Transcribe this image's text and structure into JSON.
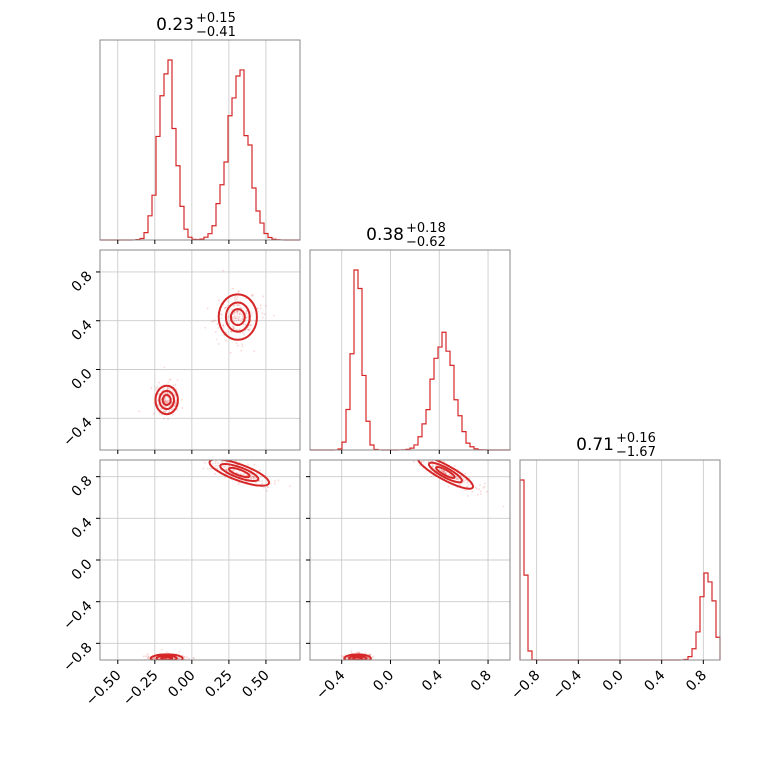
{
  "colors": {
    "series": "#d62728",
    "fill_light": "#f4b4b5",
    "fill_mid": "#ea7f84",
    "grid": "#cccccc",
    "frame": "#888888"
  },
  "chart_data": {
    "type": "corner",
    "titles": [
      {
        "median": "0.23",
        "plus": "+0.15",
        "minus": "−0.41"
      },
      {
        "median": "0.38",
        "plus": "+0.18",
        "minus": "−0.62"
      },
      {
        "median": "0.71",
        "plus": "+0.16",
        "minus": "−1.67"
      }
    ],
    "params": [
      {
        "range": [
          -0.62,
          0.73
        ],
        "ticks": [
          -0.5,
          -0.25,
          0.0,
          0.25,
          0.5
        ],
        "tick_labels": [
          "−0.50",
          "−0.25",
          "0.00",
          "0.25",
          "0.50"
        ]
      },
      {
        "range": [
          -0.66,
          0.98
        ],
        "ticks": [
          -0.4,
          0.0,
          0.4,
          0.8
        ],
        "tick_labels": [
          "−0.4",
          "0.0",
          "0.4",
          "0.8"
        ]
      },
      {
        "range": [
          -0.96,
          0.96
        ],
        "ticks": [
          -0.8,
          -0.4,
          0.0,
          0.4,
          0.8
        ],
        "tick_labels": [
          "−0.8",
          "−0.4",
          "0.0",
          "0.4",
          "0.8"
        ]
      }
    ],
    "marginals": [
      {
        "modes": [
          {
            "mu": -0.17,
            "sigma": 0.055,
            "w": 0.44
          },
          {
            "mu": 0.31,
            "sigma": 0.075,
            "w": 0.56
          }
        ]
      },
      {
        "modes": [
          {
            "mu": -0.27,
            "sigma": 0.045,
            "w": 0.44
          },
          {
            "mu": 0.43,
            "sigma": 0.09,
            "w": 0.56
          }
        ]
      },
      {
        "modes": [
          {
            "mu": -0.94,
            "sigma": 0.03,
            "w": 0.52
          },
          {
            "mu": 0.84,
            "sigma": 0.065,
            "w": 0.48
          }
        ]
      }
    ],
    "hist_bins": 50,
    "pairs": [
      {
        "x": 0,
        "y": 1,
        "clusters": [
          {
            "cx": -0.17,
            "cy": -0.25,
            "rx": 0.05,
            "ry": 0.075,
            "rot": 0
          },
          {
            "cx": 0.31,
            "cy": 0.43,
            "rx": 0.08,
            "ry": 0.12,
            "rot": 0
          }
        ]
      },
      {
        "x": 0,
        "y": 2,
        "clusters": [
          {
            "cx": -0.17,
            "cy": -0.945,
            "rx": 0.07,
            "ry": 0.025,
            "rot": 0
          },
          {
            "cx": 0.32,
            "cy": 0.84,
            "rx": 0.13,
            "ry": 0.05,
            "rot": -0.35
          }
        ]
      },
      {
        "x": 1,
        "y": 2,
        "clusters": [
          {
            "cx": -0.27,
            "cy": -0.945,
            "rx": 0.07,
            "ry": 0.025,
            "rot": 0
          },
          {
            "cx": 0.45,
            "cy": 0.84,
            "rx": 0.16,
            "ry": 0.045,
            "rot": -0.5
          }
        ]
      }
    ]
  }
}
